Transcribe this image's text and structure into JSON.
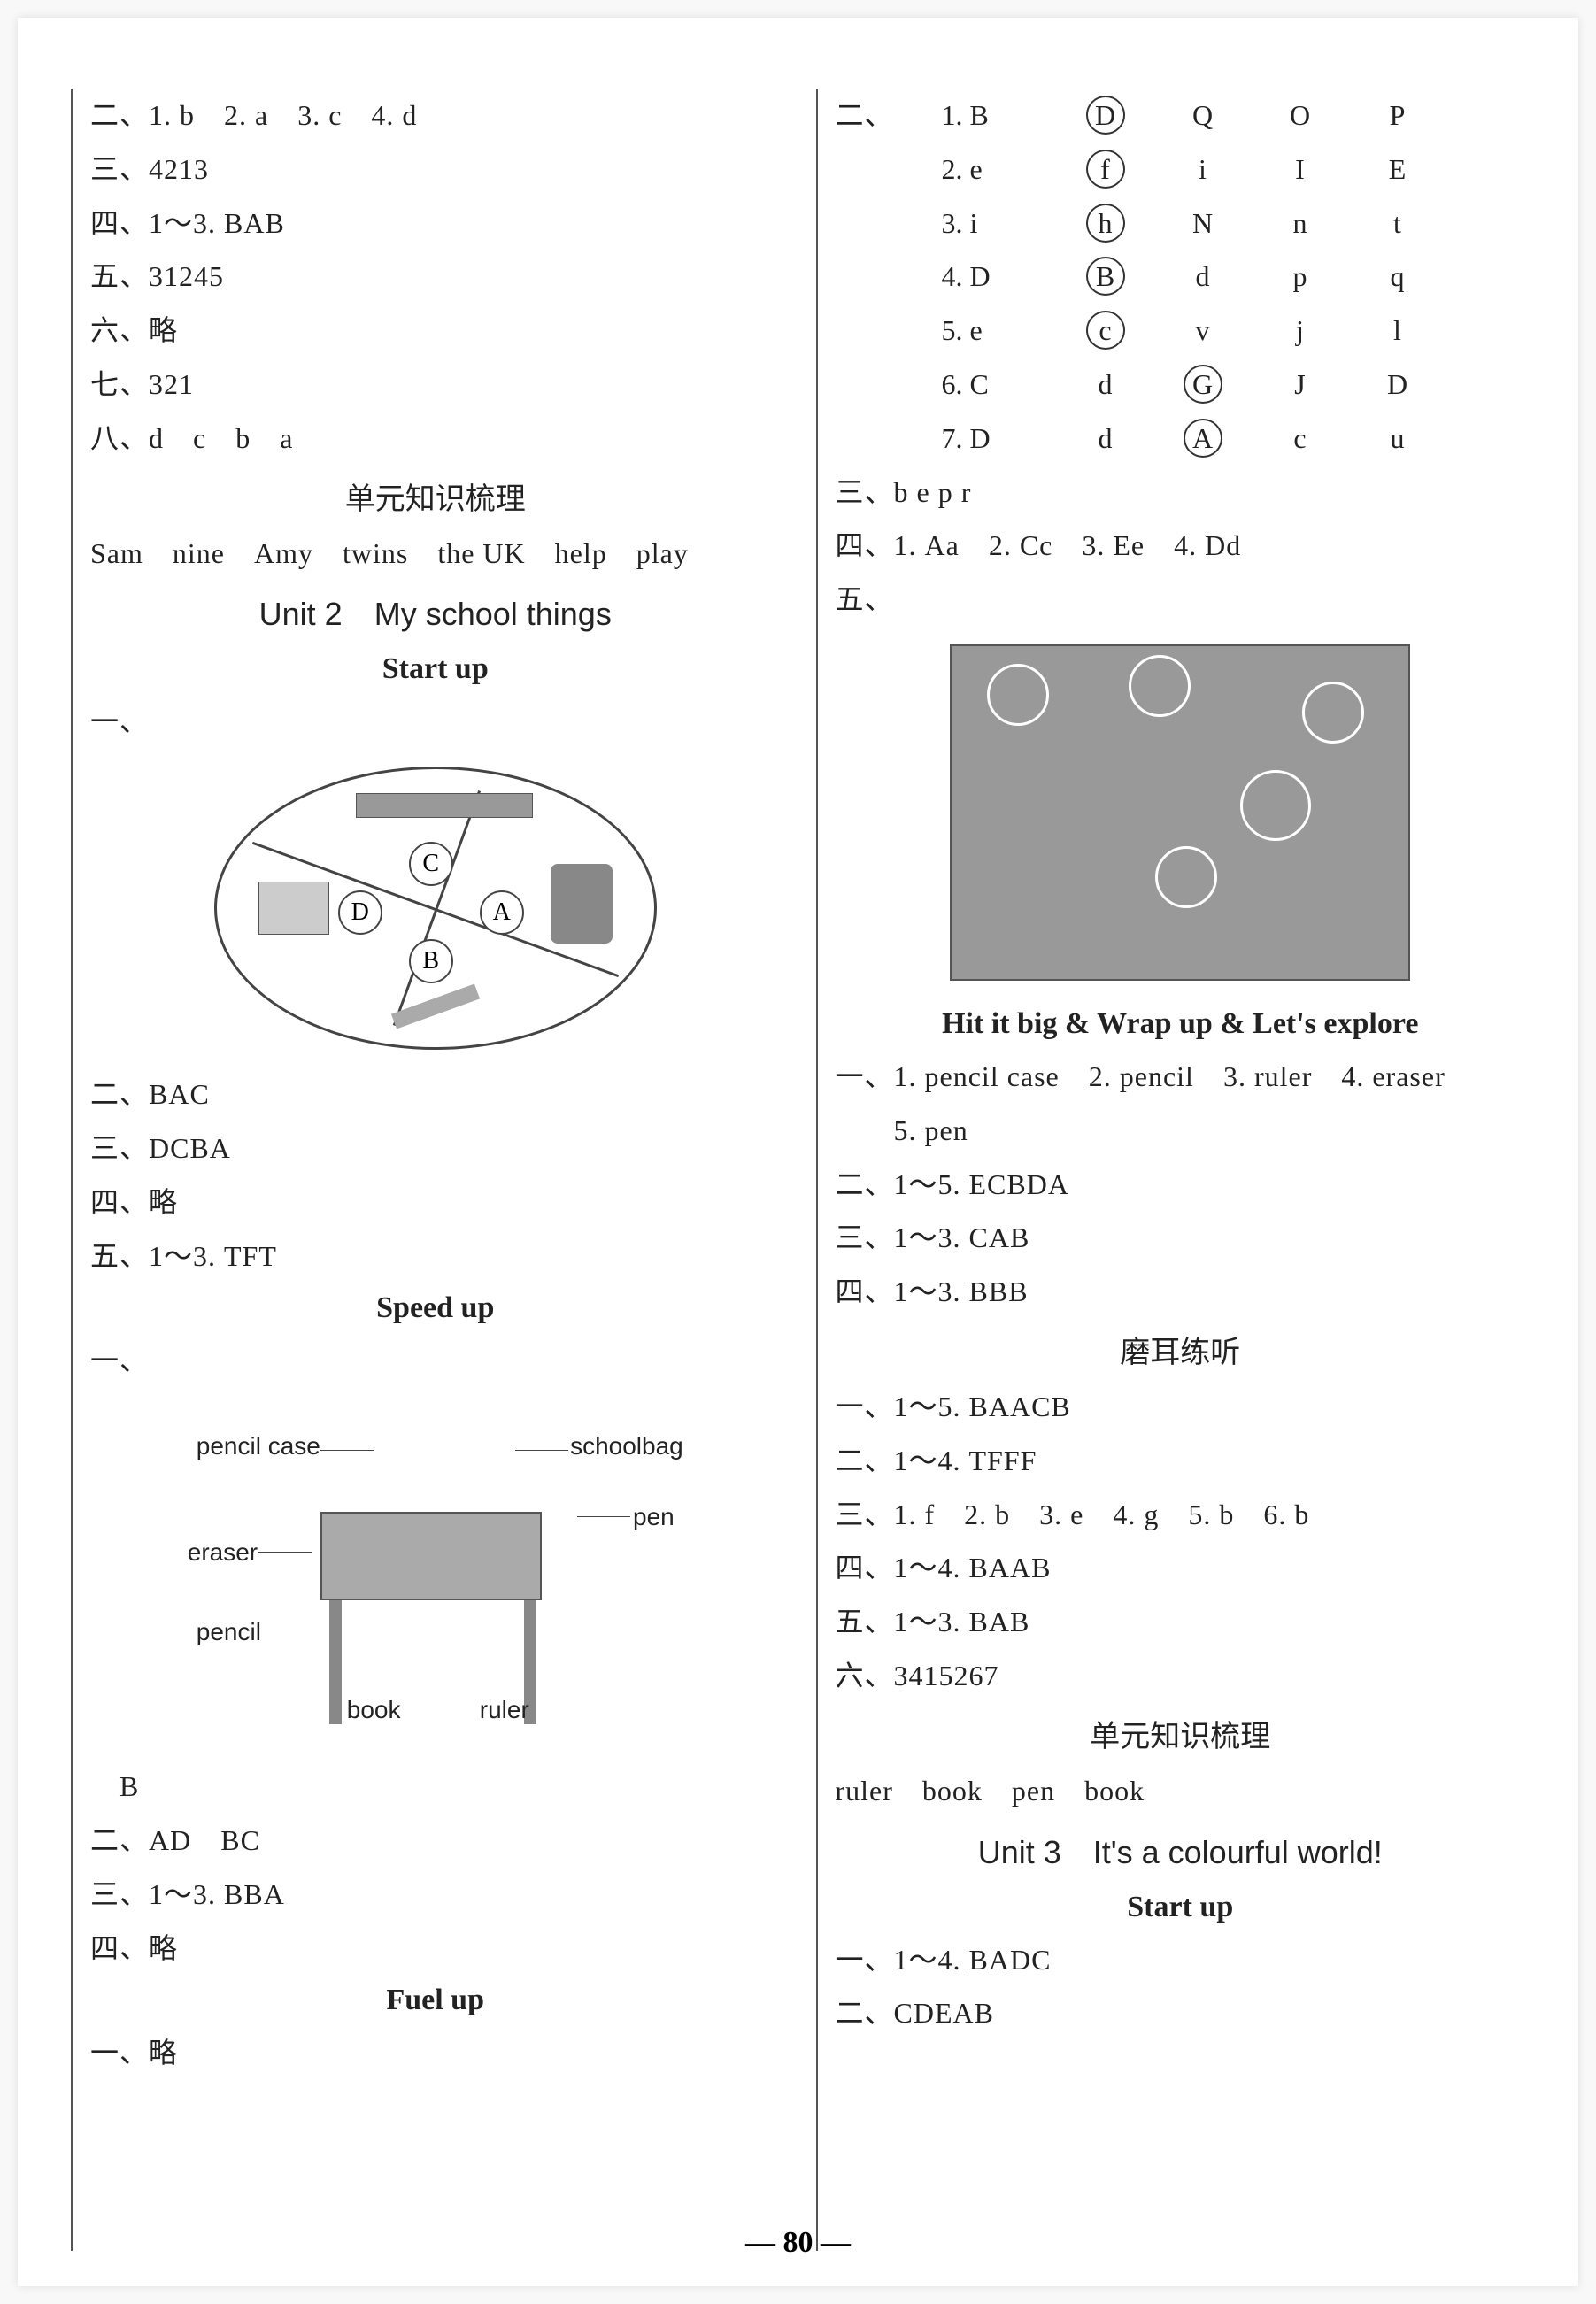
{
  "page_number": "— 80 —",
  "left": {
    "lines_top": [
      "二、1. b　2. a　3. c　4. d",
      "三、4213",
      "四、1～3. BAB",
      "五、31245",
      "六、略",
      "七、321",
      "八、d　c　b　a"
    ],
    "title_unit_review": "单元知识梳理",
    "review_line": "Sam　nine　Amy　twins　the UK　help　play",
    "unit2_title": "Unit 2　My school things",
    "startup": "Start up",
    "dash1": "一、",
    "oval_labels": {
      "A": "A",
      "B": "B",
      "C": "C",
      "D": "D"
    },
    "lines_mid": [
      "二、BAC",
      "三、DCBA",
      "四、略",
      "五、1～3. TFT"
    ],
    "speedup": "Speed up",
    "dash2": "一、",
    "desk_labels": {
      "pencil_case": "pencil case",
      "schoolbag": "schoolbag",
      "pen": "pen",
      "eraser": "eraser",
      "pencil": "pencil",
      "book": "book",
      "ruler": "ruler"
    },
    "b_line": "　B",
    "lines_bottom": [
      "二、AD　BC",
      "三、1～3. BBA",
      "四、略"
    ],
    "fuelup": "Fuel up",
    "fuelup_dash": "一、略"
  },
  "right": {
    "dash_two": "二、",
    "table": [
      {
        "num": "1.",
        "a": "B",
        "b": "D",
        "c": "Q",
        "d": "O",
        "e": "P",
        "circled": 1
      },
      {
        "num": "2.",
        "a": "e",
        "b": "f",
        "c": "i",
        "d": "I",
        "e": "E",
        "circled": 1
      },
      {
        "num": "3.",
        "a": "i",
        "b": "h",
        "c": "N",
        "d": "n",
        "e": "t",
        "circled": 1
      },
      {
        "num": "4.",
        "a": "D",
        "b": "B",
        "c": "d",
        "d": "p",
        "e": "q",
        "circled": 1
      },
      {
        "num": "5.",
        "a": "e",
        "b": "c",
        "c": "v",
        "d": "j",
        "e": "l",
        "circled": 1
      },
      {
        "num": "6.",
        "a": "C",
        "b": "d",
        "c": "G",
        "d": "J",
        "e": "D",
        "circled": 2
      },
      {
        "num": "7.",
        "a": "D",
        "b": "d",
        "c": "A",
        "d": "c",
        "e": "u",
        "circled": 2
      }
    ],
    "line_three": "三、b e p r",
    "line_four": "四、1. Aa　2. Cc　3. Ee　4. Dd",
    "line_five": "五、",
    "hitbig": "Hit it big & Wrap up & Let's explore",
    "hitbig_lines": [
      "一、1. pencil case　2. pencil　3. ruler　4. eraser",
      "　　5. pen",
      "二、1～5. ECBDA",
      "三、1～3. CAB",
      "四、1～3. BBB"
    ],
    "listen_title": "磨耳练听",
    "listen_lines": [
      "一、1～5. BAACB",
      "二、1～4. TFFF",
      "三、1. f　2. b　3. e　4. g　5. b　6. b",
      "四、1～4. BAAB",
      "五、1～3. BAB",
      "六、3415267"
    ],
    "review2_title": "单元知识梳理",
    "review2_line": "ruler　book　pen　book",
    "unit3_title": "Unit 3　It's a colourful world!",
    "startup2": "Start up",
    "unit3_lines": [
      "一、1～4. BADC",
      "二、CDEAB"
    ]
  },
  "colors": {
    "text": "#222222",
    "border": "#555555",
    "bg": "#ffffff"
  }
}
